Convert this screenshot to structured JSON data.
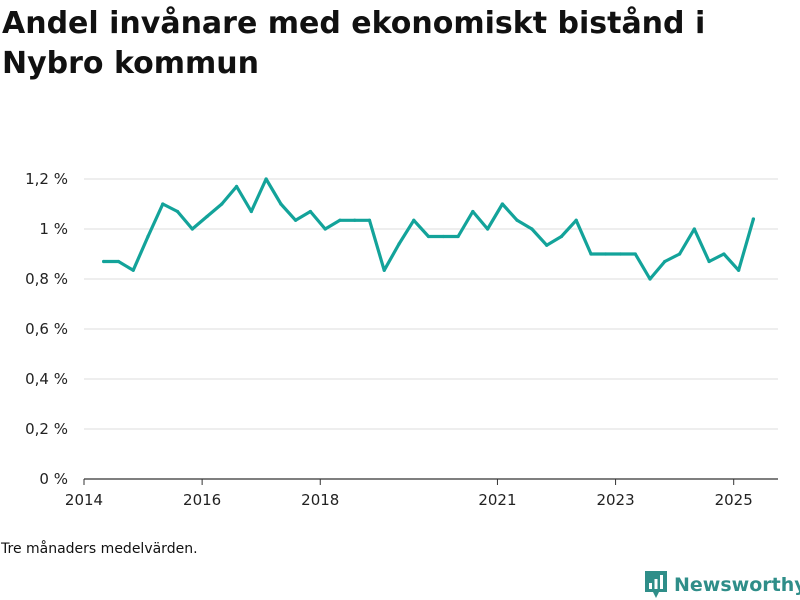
{
  "title": "Andel invånare med ekonomiskt bistånd i Nybro kommun",
  "footnote": "Tre månaders medelvärden.",
  "brand": {
    "name": "Newsworthy",
    "icon": "newsworthy-logo-icon"
  },
  "colors": {
    "line": "#13a39a",
    "grid": "#dddddd",
    "axis": "#333333",
    "brand": "#2f8e89"
  },
  "chart_data": {
    "type": "line",
    "title": "",
    "xlabel": "",
    "ylabel": "",
    "ylim": [
      0,
      1.2
    ],
    "grid": true,
    "legend": "none",
    "y_ticks": [
      {
        "value": 0,
        "label": "0 %"
      },
      {
        "value": 0.2,
        "label": "0,2 %"
      },
      {
        "value": 0.4,
        "label": "0,4 %"
      },
      {
        "value": 0.6,
        "label": "0,6 %"
      },
      {
        "value": 0.8,
        "label": "0,8 %"
      },
      {
        "value": 1.0,
        "label": "1 %"
      },
      {
        "value": 1.2,
        "label": "1,2 %"
      }
    ],
    "x_ticks": [
      {
        "value": "2014-01",
        "label": "2014"
      },
      {
        "value": "2016-01",
        "label": "2016"
      },
      {
        "value": "2018-01",
        "label": "2018"
      },
      {
        "value": "2021-01",
        "label": "2021"
      },
      {
        "value": "2023-01",
        "label": "2023"
      },
      {
        "value": "2025-01",
        "label": "2025"
      }
    ],
    "series": [
      {
        "x": [
          "2014-05",
          "2014-08",
          "2014-11",
          "2015-02",
          "2015-05",
          "2015-08",
          "2015-11",
          "2016-02",
          "2016-05",
          "2016-08",
          "2016-11",
          "2017-02",
          "2017-05",
          "2017-08",
          "2017-11",
          "2018-02",
          "2018-05",
          "2018-08",
          "2018-11",
          "2019-02",
          "2019-05",
          "2019-08",
          "2019-11",
          "2020-02",
          "2020-05",
          "2020-08",
          "2020-11",
          "2021-02",
          "2021-05",
          "2021-08",
          "2021-11",
          "2022-02",
          "2022-05",
          "2022-08",
          "2022-11",
          "2023-02",
          "2023-05",
          "2023-08",
          "2023-11",
          "2024-02",
          "2024-05",
          "2024-08",
          "2024-11",
          "2025-02",
          "2025-05"
        ],
        "values": [
          0.87,
          0.87,
          0.835,
          0.97,
          1.1,
          1.07,
          1.0,
          1.05,
          1.1,
          1.17,
          1.07,
          1.2,
          1.1,
          1.035,
          1.07,
          1.0,
          1.035,
          1.035,
          1.035,
          0.835,
          0.94,
          1.035,
          0.97,
          0.97,
          0.97,
          1.07,
          1.0,
          1.1,
          1.035,
          1.0,
          0.935,
          0.97,
          1.035,
          0.9,
          0.9,
          0.9,
          0.9,
          0.8,
          0.87,
          0.9,
          1.0,
          0.87,
          0.9,
          0.835,
          1.04
        ]
      }
    ]
  }
}
